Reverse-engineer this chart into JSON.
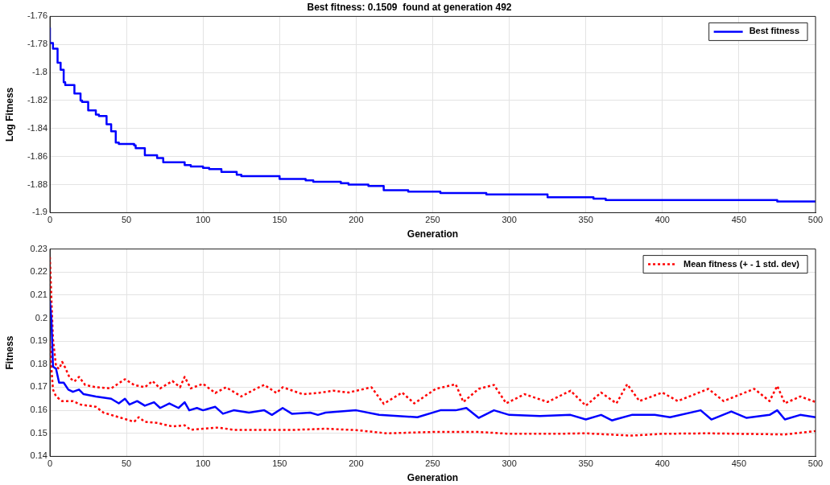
{
  "chart_data": [
    {
      "type": "step",
      "title": "Best fitness: 0.1509  found at generation 492",
      "xlabel": "Generation",
      "ylabel": "Log Fitness",
      "xlim": [
        0,
        500
      ],
      "xticks": [
        0,
        50,
        100,
        150,
        200,
        250,
        300,
        350,
        400,
        450,
        500
      ],
      "ylim": [
        -1.9,
        -1.76
      ],
      "yticks": [
        -1.9,
        -1.88,
        -1.86,
        -1.84,
        -1.82,
        -1.8,
        -1.78,
        -1.76
      ],
      "grid": true,
      "legend": "top right",
      "series": [
        {
          "name": "Best fitness",
          "color": "#0000ff",
          "x": [
            0,
            2,
            5,
            7,
            9,
            10,
            16,
            20,
            21,
            25,
            30,
            32,
            37,
            40,
            43,
            45,
            55,
            56,
            62,
            70,
            74,
            88,
            92,
            100,
            104,
            112,
            122,
            125,
            130,
            150,
            167,
            172,
            190,
            195,
            208,
            218,
            234,
            240,
            255,
            270,
            285,
            320,
            325,
            355,
            363,
            420,
            465,
            475,
            490,
            500
          ],
          "values": [
            -1.768,
            -1.779,
            -1.783,
            -1.793,
            -1.798,
            -1.807,
            -1.809,
            -1.815,
            -1.82,
            -1.821,
            -1.827,
            -1.83,
            -1.831,
            -1.837,
            -1.842,
            -1.85,
            -1.851,
            -1.852,
            -1.854,
            -1.859,
            -1.861,
            -1.864,
            -1.866,
            -1.867,
            -1.868,
            -1.869,
            -1.871,
            -1.873,
            -1.874,
            -1.874,
            -1.876,
            -1.877,
            -1.878,
            -1.879,
            -1.88,
            -1.881,
            -1.884,
            -1.885,
            -1.885,
            -1.886,
            -1.886,
            -1.887,
            -1.887,
            -1.889,
            -1.89,
            -1.891,
            -1.891,
            -1.891,
            -1.892,
            -1.892
          ]
        }
      ]
    },
    {
      "type": "line",
      "xlabel": "Generation",
      "ylabel": "Fitness",
      "xlim": [
        0,
        500
      ],
      "xticks": [
        0,
        50,
        100,
        150,
        200,
        250,
        300,
        350,
        400,
        450,
        500
      ],
      "ylim": [
        0.14,
        0.23
      ],
      "yticks": [
        0.14,
        0.15,
        0.16,
        0.17,
        0.18,
        0.19,
        0.2,
        0.21,
        0.22,
        0.23
      ],
      "grid": true,
      "legend": "top right",
      "series": [
        {
          "color": "#0000ff",
          "line_style": "solid",
          "x": [
            0,
            1,
            2,
            4,
            6,
            9,
            12,
            15,
            19,
            22,
            30,
            40,
            45,
            49,
            52,
            57,
            62,
            68,
            72,
            78,
            84,
            88,
            91,
            96,
            100,
            108,
            113,
            120,
            130,
            140,
            145,
            152,
            158,
            170,
            175,
            180,
            200,
            215,
            240,
            255,
            265,
            272,
            280,
            290,
            300,
            320,
            340,
            350,
            360,
            367,
            380,
            395,
            405,
            425,
            432,
            445,
            455,
            470,
            475,
            480,
            490,
            500
          ],
          "values": [
            0.2075,
            0.199,
            0.179,
            0.178,
            0.172,
            0.172,
            0.169,
            0.168,
            0.169,
            0.167,
            0.166,
            0.165,
            0.163,
            0.165,
            0.1625,
            0.164,
            0.162,
            0.1635,
            0.161,
            0.163,
            0.161,
            0.1635,
            0.16,
            0.161,
            0.16,
            0.1615,
            0.1585,
            0.16,
            0.159,
            0.16,
            0.158,
            0.161,
            0.1585,
            0.159,
            0.158,
            0.159,
            0.16,
            0.158,
            0.157,
            0.16,
            0.16,
            0.161,
            0.1567,
            0.16,
            0.158,
            0.1575,
            0.158,
            0.156,
            0.158,
            0.1556,
            0.158,
            0.158,
            0.157,
            0.16,
            0.156,
            0.1595,
            0.1567,
            0.158,
            0.16,
            0.156,
            0.158,
            0.157
          ]
        },
        {
          "name": "Mean fitness (+ - 1 std. dev)",
          "color": "#ff0000",
          "line_style": "dotted",
          "x": [
            0,
            1,
            2,
            4,
            6,
            8,
            10,
            13,
            16,
            19,
            23,
            30,
            40,
            49,
            55,
            62,
            67,
            72,
            80,
            85,
            88,
            92,
            100,
            108,
            115,
            125,
            135,
            140,
            148,
            152,
            165,
            175,
            185,
            195,
            210,
            218,
            230,
            238,
            252,
            265,
            270,
            280,
            290,
            298,
            310,
            325,
            340,
            350,
            360,
            370,
            377,
            385,
            400,
            410,
            430,
            440,
            460,
            470,
            475,
            480,
            490,
            500
          ],
          "values": [
            0.2265,
            0.208,
            0.191,
            0.179,
            0.178,
            0.181,
            0.1785,
            0.174,
            0.1725,
            0.1745,
            0.171,
            0.17,
            0.1695,
            0.1735,
            0.171,
            0.17,
            0.1727,
            0.1695,
            0.1727,
            0.17,
            0.1745,
            0.1695,
            0.1715,
            0.1675,
            0.17,
            0.166,
            0.1695,
            0.171,
            0.1675,
            0.17,
            0.167,
            0.1675,
            0.1685,
            0.1677,
            0.17,
            0.1628,
            0.1677,
            0.163,
            0.1693,
            0.1713,
            0.1636,
            0.1693,
            0.171,
            0.163,
            0.167,
            0.1636,
            0.1685,
            0.162,
            0.1677,
            0.163,
            0.1713,
            0.164,
            0.1677,
            0.164,
            0.1693,
            0.164,
            0.1693,
            0.164,
            0.1706,
            0.163,
            0.166,
            0.1636
          ]
        },
        {
          "color": "#ff0000",
          "line_style": "dotted",
          "x": [
            0,
            1,
            2,
            4,
            8,
            15,
            20,
            30,
            35,
            40,
            50,
            55,
            58,
            62,
            70,
            80,
            88,
            92,
            100,
            110,
            120,
            140,
            160,
            180,
            200,
            220,
            250,
            280,
            300,
            330,
            350,
            380,
            400,
            430,
            450,
            480,
            500
          ],
          "values": [
            0.19,
            0.178,
            0.169,
            0.166,
            0.164,
            0.164,
            0.1625,
            0.1615,
            0.159,
            0.158,
            0.156,
            0.155,
            0.157,
            0.155,
            0.1545,
            0.153,
            0.1535,
            0.1515,
            0.152,
            0.1525,
            0.1515,
            0.1515,
            0.1515,
            0.152,
            0.1514,
            0.15,
            0.1506,
            0.1506,
            0.1498,
            0.1498,
            0.15,
            0.149,
            0.1498,
            0.15,
            0.1498,
            0.1495,
            0.151
          ]
        }
      ]
    }
  ]
}
